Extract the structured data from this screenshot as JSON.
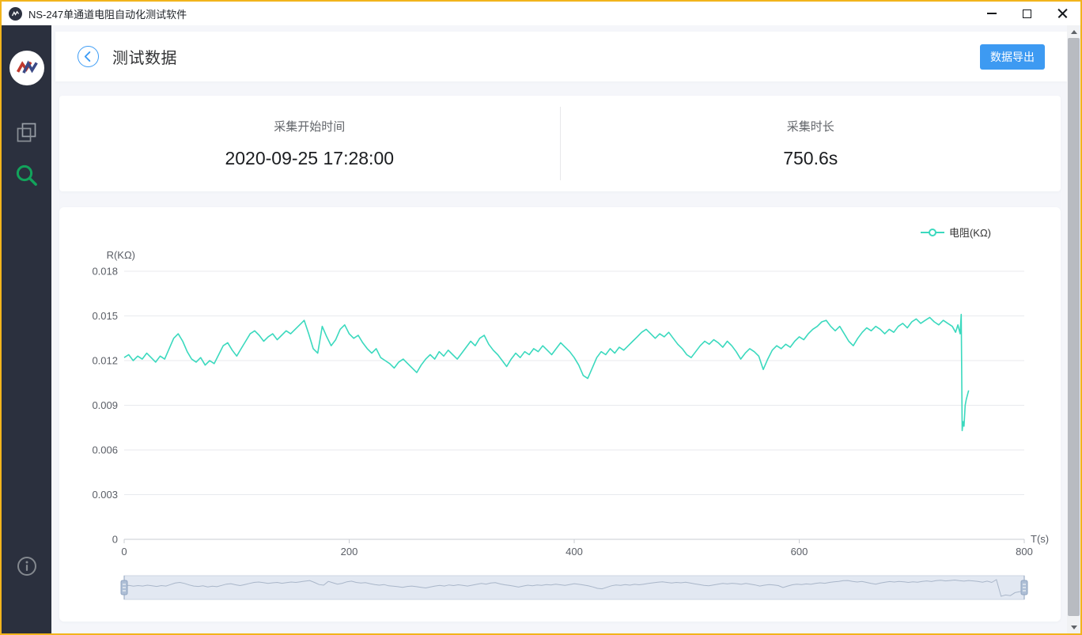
{
  "window": {
    "title": "NS-247单通道电阻自动化测试软件",
    "border_color": "#f2b41c"
  },
  "colors": {
    "accent_blue": "#3d9af2",
    "series_teal": "#3bd9be",
    "sidebar_dark": "#2b303e",
    "search_icon_green": "#12a35b"
  },
  "icons": {
    "app": "app-logo",
    "minimize": "minimize",
    "maximize": "maximize",
    "close": "close",
    "nav_first": "overlapping-windows",
    "nav_second": "search",
    "bottom": "info-circle",
    "scroll_up": "arrow-up",
    "scroll_down": "arrow-down",
    "back": "chevron-left-circle"
  },
  "header": {
    "title": "测试数据",
    "export_label": "数据导出"
  },
  "info_panel": {
    "items": [
      {
        "label": "采集开始时间",
        "value": "2020-09-25 17:28:00"
      },
      {
        "label": "采集时长",
        "value": "750.6s"
      }
    ]
  },
  "chart_data": {
    "type": "line",
    "title": "",
    "xlabel": "T(s)",
    "ylabel": "R(KΩ)",
    "xlim": [
      0,
      800
    ],
    "ylim": [
      0,
      0.018
    ],
    "x_ticks": [
      0,
      200,
      400,
      600,
      800
    ],
    "y_ticks": [
      0,
      0.003,
      0.006,
      0.009,
      0.012,
      0.015,
      0.018
    ],
    "grid": true,
    "legend_position": "top-right",
    "legend": [
      {
        "label": "电阻(KΩ)",
        "color": "#3bd9be"
      }
    ],
    "datazoom": {
      "start_percent": 0,
      "end_percent": 100
    },
    "series": [
      {
        "name": "电阻(KΩ)",
        "color": "#3bd9be",
        "points": [
          [
            0,
            0.0122
          ],
          [
            4,
            0.0124
          ],
          [
            8,
            0.012
          ],
          [
            12,
            0.0123
          ],
          [
            16,
            0.0121
          ],
          [
            20,
            0.0125
          ],
          [
            24,
            0.0122
          ],
          [
            28,
            0.0119
          ],
          [
            32,
            0.0123
          ],
          [
            36,
            0.0121
          ],
          [
            40,
            0.0128
          ],
          [
            44,
            0.0135
          ],
          [
            48,
            0.0138
          ],
          [
            52,
            0.0133
          ],
          [
            56,
            0.0126
          ],
          [
            60,
            0.0121
          ],
          [
            64,
            0.0119
          ],
          [
            68,
            0.0122
          ],
          [
            72,
            0.0117
          ],
          [
            76,
            0.012
          ],
          [
            80,
            0.0118
          ],
          [
            84,
            0.0124
          ],
          [
            88,
            0.013
          ],
          [
            92,
            0.0132
          ],
          [
            96,
            0.0127
          ],
          [
            100,
            0.0123
          ],
          [
            104,
            0.0128
          ],
          [
            108,
            0.0133
          ],
          [
            112,
            0.0138
          ],
          [
            116,
            0.014
          ],
          [
            120,
            0.0137
          ],
          [
            124,
            0.0133
          ],
          [
            128,
            0.0136
          ],
          [
            132,
            0.0138
          ],
          [
            136,
            0.0134
          ],
          [
            140,
            0.0137
          ],
          [
            144,
            0.014
          ],
          [
            148,
            0.0138
          ],
          [
            152,
            0.0141
          ],
          [
            156,
            0.0144
          ],
          [
            160,
            0.0147
          ],
          [
            164,
            0.0138
          ],
          [
            168,
            0.0128
          ],
          [
            172,
            0.0125
          ],
          [
            176,
            0.0143
          ],
          [
            180,
            0.0136
          ],
          [
            184,
            0.013
          ],
          [
            188,
            0.0134
          ],
          [
            192,
            0.0141
          ],
          [
            196,
            0.0144
          ],
          [
            200,
            0.0138
          ],
          [
            204,
            0.0135
          ],
          [
            208,
            0.0137
          ],
          [
            212,
            0.0132
          ],
          [
            216,
            0.0128
          ],
          [
            220,
            0.0125
          ],
          [
            224,
            0.0128
          ],
          [
            228,
            0.0122
          ],
          [
            232,
            0.012
          ],
          [
            236,
            0.0118
          ],
          [
            240,
            0.0115
          ],
          [
            244,
            0.0119
          ],
          [
            248,
            0.0121
          ],
          [
            252,
            0.0118
          ],
          [
            256,
            0.0115
          ],
          [
            260,
            0.0112
          ],
          [
            264,
            0.0117
          ],
          [
            268,
            0.0121
          ],
          [
            272,
            0.0124
          ],
          [
            276,
            0.0121
          ],
          [
            280,
            0.0126
          ],
          [
            284,
            0.0123
          ],
          [
            288,
            0.0127
          ],
          [
            292,
            0.0124
          ],
          [
            296,
            0.0121
          ],
          [
            300,
            0.0125
          ],
          [
            304,
            0.0129
          ],
          [
            308,
            0.0133
          ],
          [
            312,
            0.013
          ],
          [
            316,
            0.0135
          ],
          [
            320,
            0.0137
          ],
          [
            324,
            0.0131
          ],
          [
            328,
            0.0127
          ],
          [
            332,
            0.0124
          ],
          [
            336,
            0.012
          ],
          [
            340,
            0.0116
          ],
          [
            344,
            0.0121
          ],
          [
            348,
            0.0125
          ],
          [
            352,
            0.0122
          ],
          [
            356,
            0.0126
          ],
          [
            360,
            0.0124
          ],
          [
            364,
            0.0128
          ],
          [
            368,
            0.0126
          ],
          [
            372,
            0.013
          ],
          [
            376,
            0.0127
          ],
          [
            380,
            0.0124
          ],
          [
            384,
            0.0128
          ],
          [
            388,
            0.0132
          ],
          [
            392,
            0.0129
          ],
          [
            396,
            0.0126
          ],
          [
            400,
            0.0122
          ],
          [
            404,
            0.0117
          ],
          [
            408,
            0.011
          ],
          [
            412,
            0.0108
          ],
          [
            416,
            0.0115
          ],
          [
            420,
            0.0122
          ],
          [
            424,
            0.0126
          ],
          [
            428,
            0.0124
          ],
          [
            432,
            0.0128
          ],
          [
            436,
            0.0125
          ],
          [
            440,
            0.0129
          ],
          [
            444,
            0.0127
          ],
          [
            448,
            0.013
          ],
          [
            452,
            0.0133
          ],
          [
            456,
            0.0136
          ],
          [
            460,
            0.0139
          ],
          [
            464,
            0.0141
          ],
          [
            468,
            0.0138
          ],
          [
            472,
            0.0135
          ],
          [
            476,
            0.0138
          ],
          [
            480,
            0.0136
          ],
          [
            484,
            0.0139
          ],
          [
            488,
            0.0135
          ],
          [
            492,
            0.0131
          ],
          [
            496,
            0.0128
          ],
          [
            500,
            0.0124
          ],
          [
            504,
            0.0122
          ],
          [
            508,
            0.0126
          ],
          [
            512,
            0.013
          ],
          [
            516,
            0.0133
          ],
          [
            520,
            0.0131
          ],
          [
            524,
            0.0134
          ],
          [
            528,
            0.0132
          ],
          [
            532,
            0.0129
          ],
          [
            536,
            0.0133
          ],
          [
            540,
            0.013
          ],
          [
            544,
            0.0126
          ],
          [
            548,
            0.0121
          ],
          [
            552,
            0.0125
          ],
          [
            556,
            0.0128
          ],
          [
            560,
            0.0126
          ],
          [
            564,
            0.0123
          ],
          [
            568,
            0.0114
          ],
          [
            572,
            0.0121
          ],
          [
            576,
            0.0127
          ],
          [
            580,
            0.013
          ],
          [
            584,
            0.0128
          ],
          [
            588,
            0.0131
          ],
          [
            592,
            0.0129
          ],
          [
            596,
            0.0133
          ],
          [
            600,
            0.0136
          ],
          [
            604,
            0.0134
          ],
          [
            608,
            0.0138
          ],
          [
            612,
            0.0141
          ],
          [
            616,
            0.0143
          ],
          [
            620,
            0.0146
          ],
          [
            624,
            0.0147
          ],
          [
            628,
            0.0143
          ],
          [
            632,
            0.014
          ],
          [
            636,
            0.0143
          ],
          [
            640,
            0.0138
          ],
          [
            644,
            0.0133
          ],
          [
            648,
            0.013
          ],
          [
            652,
            0.0135
          ],
          [
            656,
            0.0139
          ],
          [
            660,
            0.0142
          ],
          [
            664,
            0.014
          ],
          [
            668,
            0.0143
          ],
          [
            672,
            0.0141
          ],
          [
            676,
            0.0138
          ],
          [
            680,
            0.0141
          ],
          [
            684,
            0.0139
          ],
          [
            688,
            0.0143
          ],
          [
            692,
            0.0145
          ],
          [
            696,
            0.0142
          ],
          [
            700,
            0.0146
          ],
          [
            704,
            0.0148
          ],
          [
            708,
            0.0145
          ],
          [
            712,
            0.0147
          ],
          [
            716,
            0.0149
          ],
          [
            720,
            0.0146
          ],
          [
            724,
            0.0144
          ],
          [
            728,
            0.0147
          ],
          [
            732,
            0.0145
          ],
          [
            736,
            0.0143
          ],
          [
            739,
            0.0139
          ],
          [
            741,
            0.0144
          ],
          [
            743,
            0.0138
          ],
          [
            744,
            0.0151
          ],
          [
            744.8,
            0.0073
          ],
          [
            745.6,
            0.0079
          ],
          [
            746.4,
            0.0076
          ],
          [
            747.5,
            0.009
          ],
          [
            748.5,
            0.0094
          ],
          [
            750.6,
            0.01
          ]
        ]
      }
    ]
  }
}
